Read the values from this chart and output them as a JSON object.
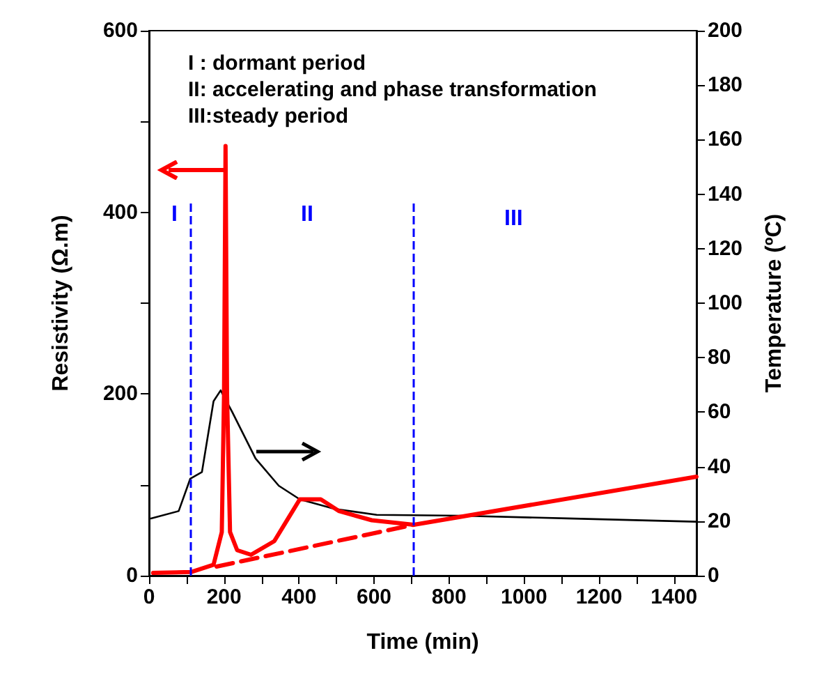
{
  "chart_data": {
    "type": "line",
    "xlabel": "Time (min)",
    "ylabel": "Resistivity (Ω.m)",
    "y2label": "Temperature (ºC)",
    "xlim": [
      0,
      1460
    ],
    "xticks": [
      0,
      {
        "value": 100,
        "label": null
      },
      200,
      {
        "value": 300,
        "label": null
      },
      400,
      {
        "value": 500,
        "label": null
      },
      600,
      {
        "value": 700,
        "label": null
      },
      800,
      {
        "value": 900,
        "label": null
      },
      1000,
      {
        "value": 1100,
        "label": null
      },
      1200,
      {
        "value": 1300,
        "label": null
      },
      1400
    ],
    "ylim": [
      0,
      600
    ],
    "yticks": [
      0,
      {
        "value": 100,
        "label": null
      },
      200,
      {
        "value": 300,
        "label": null
      },
      400,
      {
        "value": 500,
        "label": null
      },
      600
    ],
    "y2lim": [
      0,
      200
    ],
    "y2ticks": [
      0,
      20,
      40,
      60,
      80,
      100,
      120,
      140,
      160,
      180,
      200
    ],
    "grid": false,
    "marker": "none",
    "series": [
      {
        "color": "#ff0000",
        "line_style": "solid",
        "x": [
          11,
          112,
          172,
          194,
          200,
          204,
          208,
          216,
          235,
          272,
          334,
          371,
          402,
          458,
          507,
          594,
          706,
          1460
        ],
        "values": [
          3,
          4,
          12,
          48,
          200,
          473,
          200,
          48,
          28,
          23,
          38,
          63,
          84,
          84,
          71,
          61,
          56,
          109
        ]
      },
      {
        "color": "#ff0000",
        "line_style": "dashed",
        "x": [
          180,
          706
        ],
        "values": [
          10,
          56
        ]
      },
      {
        "color": "#000000",
        "line_style": "solid",
        "axis": "y2",
        "x": [
          5,
          79,
          110,
          141,
          172,
          191,
          222,
          284,
          346,
          402,
          495,
          607,
          831,
          1116,
          1460
        ],
        "values": [
          21,
          23.7,
          35.6,
          38,
          64,
          68,
          60,
          43,
          33,
          28,
          24.5,
          22.3,
          22,
          21,
          19.8
        ]
      }
    ],
    "ref_lines": [
      {
        "axis": "x",
        "value": 112,
        "color": "#0000ff",
        "line_style": "dashed"
      },
      {
        "axis": "x",
        "value": 706,
        "color": "#0000ff",
        "line_style": "dashed"
      }
    ],
    "annotations": [
      "I : dormant period",
      "II: accelerating and phase transformation",
      "III:steady period",
      "I",
      "II",
      "III"
    ]
  }
}
